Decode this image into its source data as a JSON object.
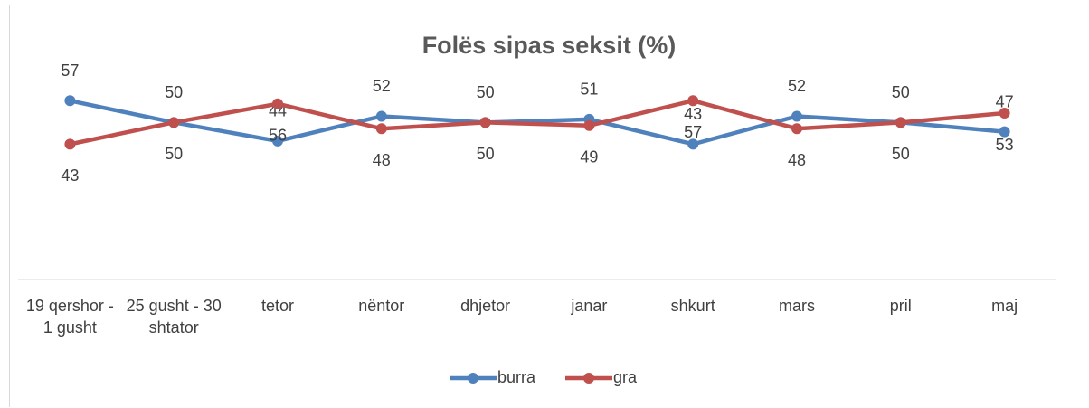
{
  "chart_data": {
    "type": "line",
    "title": "Folës sipas seksit  (%)",
    "categories": [
      "19 qershor - 1 gusht",
      "25 gusht - 30 shtator",
      "tetor",
      "nëntor",
      "dhjetor",
      "janar",
      "shkurt",
      "mars",
      "pril",
      "maj"
    ],
    "series": [
      {
        "name": "burra",
        "color": "#4f81bd",
        "values": [
          57,
          50,
          44,
          52,
          50,
          51,
          43,
          52,
          50,
          47
        ]
      },
      {
        "name": "gra",
        "color": "#c0504d",
        "values": [
          43,
          50,
          56,
          48,
          50,
          49,
          57,
          48,
          50,
          53
        ]
      }
    ],
    "ylim": [
      0,
      60
    ],
    "legend": "bottom"
  }
}
